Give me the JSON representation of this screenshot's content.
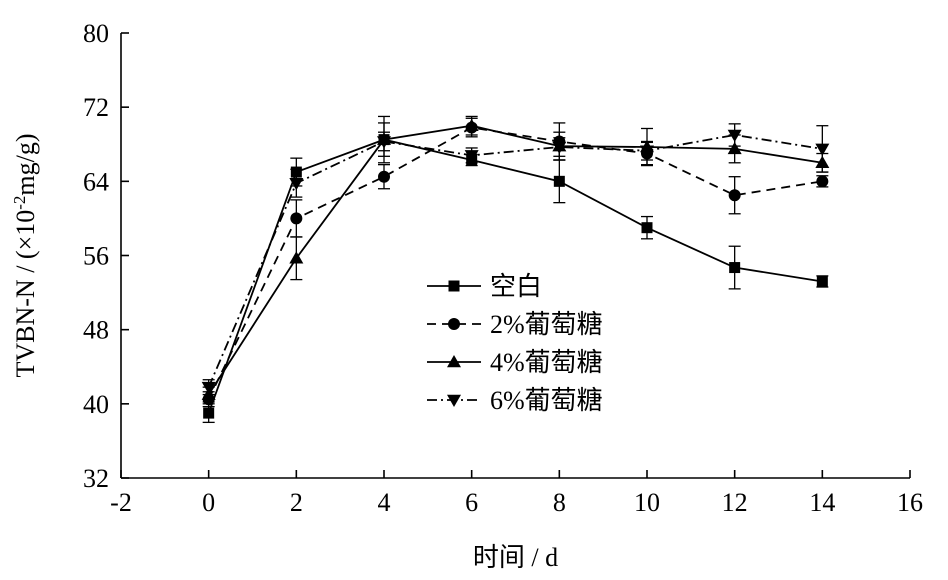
{
  "chart_data": {
    "type": "line",
    "xlabel": "时间 / d",
    "ylabel": "TVBN-N / (×10",
    "ylabel_sup": "-2",
    "ylabel_suffix": "mg/g)",
    "xlim": [
      -2,
      16
    ],
    "ylim": [
      32,
      80
    ],
    "xticks": [
      -2,
      0,
      2,
      4,
      6,
      8,
      10,
      12,
      14,
      16
    ],
    "yticks": [
      32,
      40,
      48,
      56,
      64,
      72,
      80
    ],
    "x": [
      0,
      2,
      4,
      6,
      8,
      10,
      12,
      14
    ],
    "legend_position": "center",
    "series": [
      {
        "name": "空白",
        "values": [
          39.0,
          65.0,
          68.5,
          66.3,
          64.0,
          59.0,
          54.7,
          53.2
        ],
        "errors": [
          1.0,
          1.5,
          2.5,
          0.6,
          2.3,
          1.2,
          2.3,
          0.6
        ],
        "marker": "square",
        "dash": "solid"
      },
      {
        "name": "2%葡萄糖",
        "values": [
          40.5,
          60.0,
          64.5,
          69.8,
          68.3,
          67.0,
          62.5,
          64.0
        ],
        "errors": [
          0.8,
          2.0,
          1.3,
          1.0,
          2.0,
          1.2,
          2.0,
          0.6
        ],
        "marker": "circle",
        "dash": "dashed"
      },
      {
        "name": "4%葡萄糖",
        "values": [
          41.0,
          55.7,
          68.5,
          70.0,
          67.8,
          67.7,
          67.5,
          66.0
        ],
        "errors": [
          0.8,
          2.3,
          1.8,
          1.0,
          1.5,
          2.0,
          1.5,
          1.0
        ],
        "marker": "triangle-up",
        "dash": "solid"
      },
      {
        "name": "6%葡萄糖",
        "values": [
          41.8,
          63.8,
          68.3,
          66.8,
          67.7,
          67.3,
          69.0,
          67.5
        ],
        "errors": [
          0.8,
          1.5,
          1.0,
          0.8,
          1.0,
          1.0,
          1.2,
          2.5
        ],
        "marker": "triangle-down",
        "dash": "dashdot"
      }
    ]
  }
}
